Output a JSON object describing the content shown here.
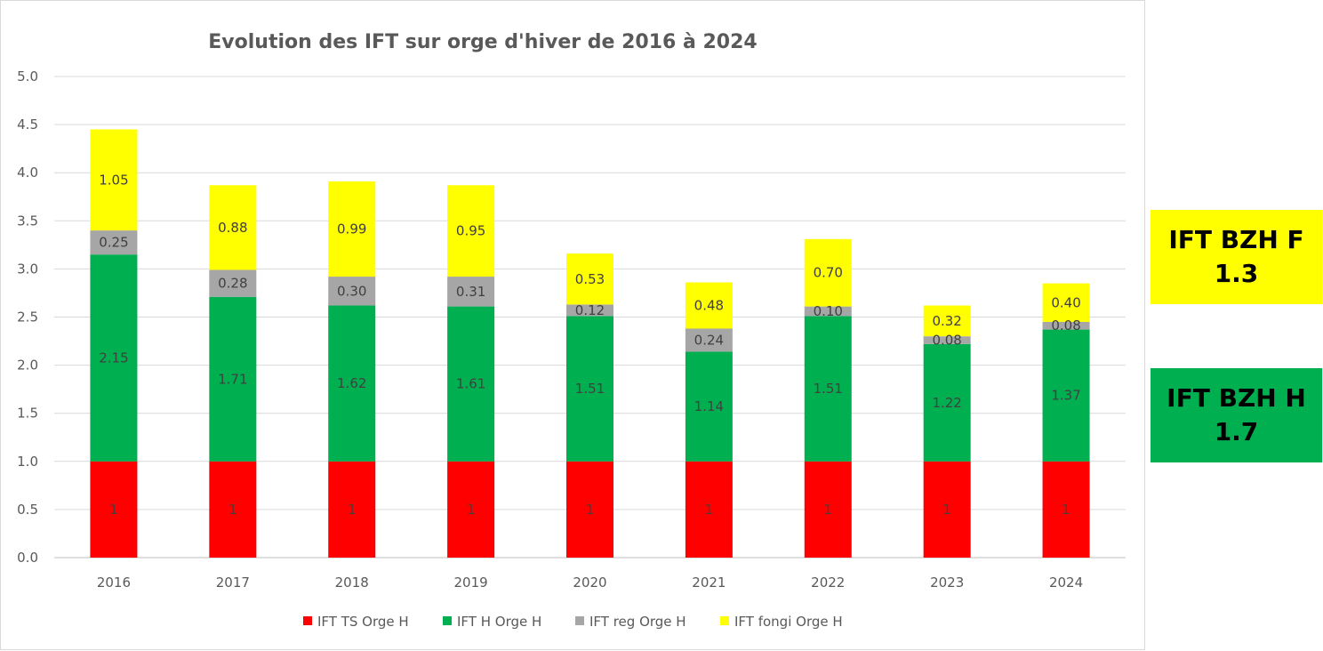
{
  "chart_data": {
    "type": "bar",
    "stacked": true,
    "title": "Evolution des IFT sur orge d'hiver de 2016 à 2024",
    "categories": [
      "2016",
      "2017",
      "2018",
      "2019",
      "2020",
      "2021",
      "2022",
      "2023",
      "2024"
    ],
    "ylim": [
      0,
      5
    ],
    "yticks": [
      "0.0",
      "0.5",
      "1.0",
      "1.5",
      "2.0",
      "2.5",
      "3.0",
      "3.5",
      "4.0",
      "4.5",
      "5.0"
    ],
    "grid": true,
    "legend_position": "bottom",
    "series": [
      {
        "name": "IFT TS Orge H",
        "color": "#ff0000",
        "values": [
          1,
          1,
          1,
          1,
          1,
          1,
          1,
          1,
          1
        ],
        "labels": [
          "1",
          "1",
          "1",
          "1",
          "1",
          "1",
          "1",
          "1",
          "1"
        ]
      },
      {
        "name": "IFT H Orge H",
        "color": "#00b050",
        "values": [
          2.15,
          1.71,
          1.62,
          1.61,
          1.51,
          1.14,
          1.51,
          1.22,
          1.37
        ],
        "labels": [
          "2.15",
          "1.71",
          "1.62",
          "1.61",
          "1.51",
          "1.14",
          "1.51",
          "1.22",
          "1.37"
        ]
      },
      {
        "name": "IFT reg Orge H",
        "color": "#a6a6a6",
        "values": [
          0.25,
          0.28,
          0.3,
          0.31,
          0.12,
          0.24,
          0.1,
          0.08,
          0.08
        ],
        "labels": [
          "0.25",
          "0.28",
          "0.30",
          "0.31",
          "0.12",
          "0.24",
          "0.10",
          "0.08",
          "0.08"
        ]
      },
      {
        "name": "IFT fongi Orge H",
        "color": "#ffff00",
        "values": [
          1.05,
          0.88,
          0.99,
          0.95,
          0.53,
          0.48,
          0.7,
          0.32,
          0.4
        ],
        "labels": [
          "1.05",
          "0.88",
          "0.99",
          "0.95",
          "0.53",
          "0.48",
          "0.70",
          "0.32",
          "0.40"
        ]
      }
    ]
  },
  "side_boxes": [
    {
      "line1": "IFT BZH F",
      "line2": "1.3",
      "color": "#ffff00"
    },
    {
      "line1": "IFT BZH H",
      "line2": "1.7",
      "color": "#00b050"
    }
  ]
}
